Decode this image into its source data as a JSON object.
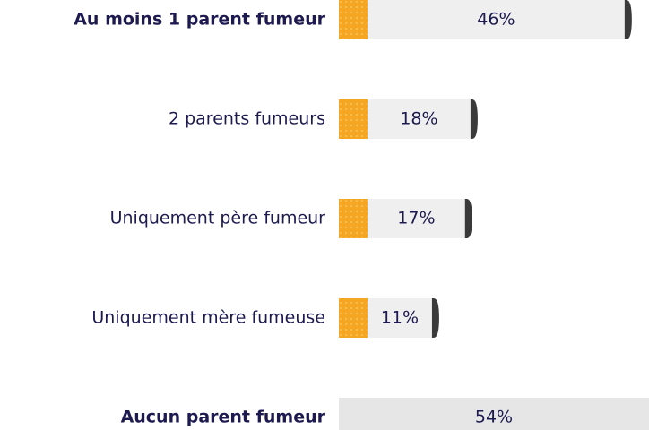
{
  "chart_data": {
    "type": "bar",
    "orientation": "horizontal",
    "categories": [
      "Au moins 1 parent fumeur",
      "2 parents fumeurs",
      "Uniquement père fumeur",
      "Uniquement mère fumeuse",
      "Aucun parent fumeur"
    ],
    "values": [
      46,
      18,
      17,
      11,
      54
    ],
    "value_labels": [
      "46%",
      "18%",
      "17%",
      "11%",
      "54%"
    ],
    "color": "#efefef",
    "filter_color": "#f5a623",
    "tip_color": "#3a3a3a",
    "plain_color": "#e6e6e6"
  }
}
